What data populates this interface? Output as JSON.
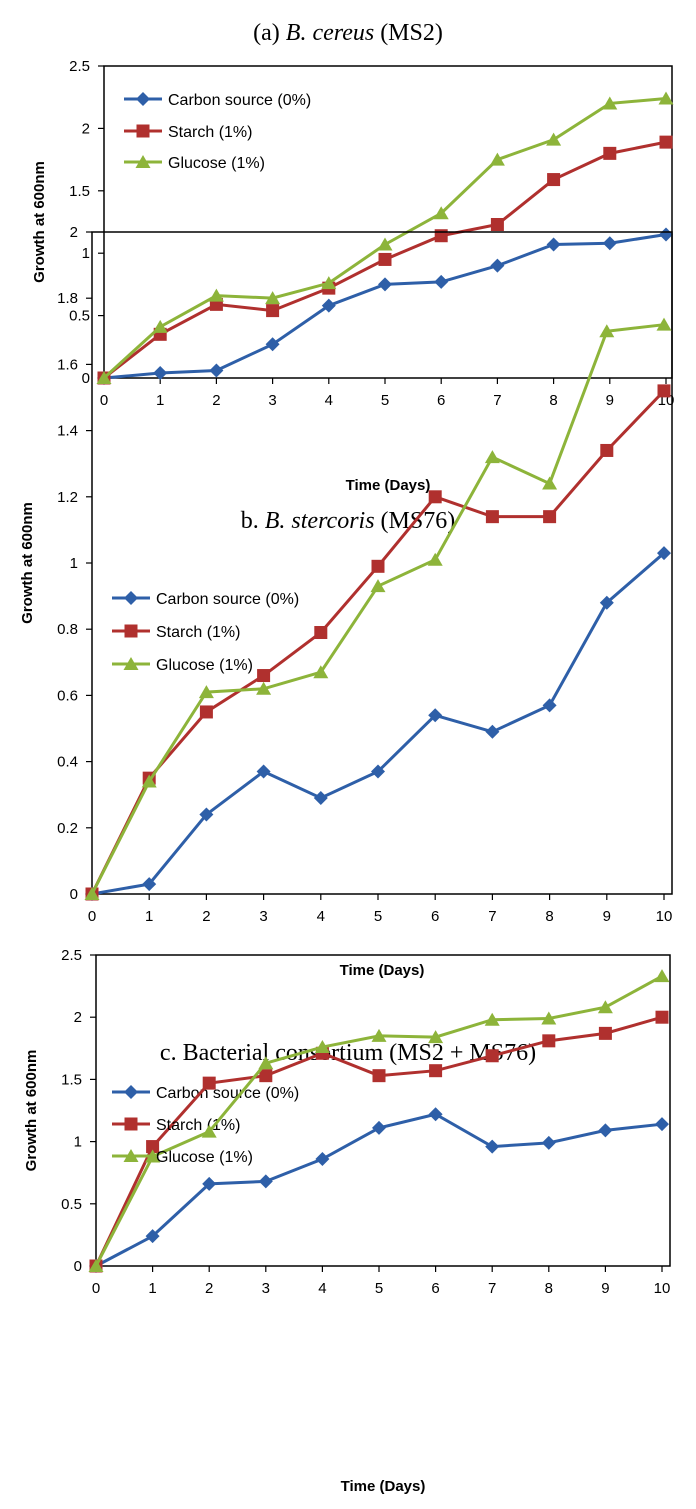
{
  "colors": {
    "carbon": "#2e5fa8",
    "starch": "#b0302e",
    "glucose": "#8db43a"
  },
  "chart_data": [
    {
      "type": "line",
      "title": "(a) B. cereus (MS2)",
      "title_italic": "B. cereus",
      "xlabel": "Time (Days)",
      "ylabel": "Growth at 600nm",
      "x": [
        0,
        1,
        2,
        3,
        4,
        5,
        6,
        7,
        8,
        9,
        10
      ],
      "ylim": [
        0,
        2.5
      ],
      "yticks": [
        "0",
        "0.5",
        "1",
        "1.5",
        "2",
        "2.5"
      ],
      "ytick_values": [
        0,
        0.5,
        1,
        1.5,
        2,
        2.5
      ],
      "legend_position": "top-left",
      "grid": false,
      "series": [
        {
          "name": "Carbon source (0%)",
          "marker": "diamond",
          "values": [
            0,
            0.04,
            0.06,
            0.27,
            0.58,
            0.75,
            0.77,
            0.9,
            1.07,
            1.08,
            1.15
          ]
        },
        {
          "name": "Starch (1%)",
          "marker": "square",
          "values": [
            0,
            0.35,
            0.59,
            0.54,
            0.72,
            0.95,
            1.14,
            1.23,
            1.59,
            1.8,
            1.89
          ]
        },
        {
          "name": "Glucose (1%)",
          "marker": "triangle",
          "values": [
            0,
            0.41,
            0.66,
            0.64,
            0.76,
            1.07,
            1.32,
            1.75,
            1.91,
            2.2,
            2.24
          ]
        }
      ]
    },
    {
      "type": "line",
      "title": "b. B. stercoris (MS76)",
      "title_italic": "B. stercoris",
      "xlabel": "Time (Days)",
      "ylabel": "Growth at 600nm",
      "x": [
        0,
        1,
        2,
        3,
        4,
        5,
        6,
        7,
        8,
        9,
        10
      ],
      "ylim": [
        0,
        2
      ],
      "yticks": [
        "0",
        "0.2",
        "0.4",
        "0.6",
        "0.8",
        "1",
        "1.2",
        "1.4",
        "1.6",
        "1.8",
        "2"
      ],
      "ytick_values": [
        0,
        0.2,
        0.4,
        0.6,
        0.8,
        1,
        1.2,
        1.4,
        1.6,
        1.8,
        2
      ],
      "legend_position": "top-left",
      "grid": false,
      "series": [
        {
          "name": "Carbon source (0%)",
          "marker": "diamond",
          "values": [
            0,
            0.03,
            0.24,
            0.37,
            0.29,
            0.37,
            0.54,
            0.49,
            0.57,
            0.88,
            1.03
          ]
        },
        {
          "name": "Starch (1%)",
          "marker": "square",
          "values": [
            0,
            0.35,
            0.55,
            0.66,
            0.79,
            0.99,
            1.2,
            1.14,
            1.14,
            1.34,
            1.52
          ]
        },
        {
          "name": "Glucose (1%)",
          "marker": "triangle",
          "values": [
            0,
            0.34,
            0.61,
            0.62,
            0.67,
            0.93,
            1.01,
            1.32,
            1.24,
            1.7,
            1.72
          ]
        }
      ]
    },
    {
      "type": "line",
      "title": "c. Bacterial consortium (MS2 + MS76)",
      "title_italic": "",
      "xlabel": "Time (Days)",
      "ylabel": "Growth at 600nm",
      "x": [
        0,
        1,
        2,
        3,
        4,
        5,
        6,
        7,
        8,
        9,
        10
      ],
      "ylim": [
        0,
        2.5
      ],
      "yticks": [
        "0",
        "0.5",
        "1",
        "1.5",
        "2",
        "2.5"
      ],
      "ytick_values": [
        0,
        0.5,
        1,
        1.5,
        2,
        2.5
      ],
      "legend_position": "top-left",
      "grid": false,
      "series": [
        {
          "name": "Carbon source (0%)",
          "marker": "diamond",
          "values": [
            0,
            0.24,
            0.66,
            0.68,
            0.86,
            1.11,
            1.22,
            0.96,
            0.99,
            1.09,
            1.14
          ]
        },
        {
          "name": "Starch (1%)",
          "marker": "square",
          "values": [
            0,
            0.96,
            1.47,
            1.53,
            1.71,
            1.53,
            1.57,
            1.69,
            1.81,
            1.87,
            2.0
          ]
        },
        {
          "name": "Glucose (1%)",
          "marker": "triangle",
          "values": [
            0,
            0.88,
            1.08,
            1.63,
            1.76,
            1.85,
            1.84,
            1.98,
            1.99,
            2.08,
            2.33
          ]
        }
      ]
    }
  ]
}
